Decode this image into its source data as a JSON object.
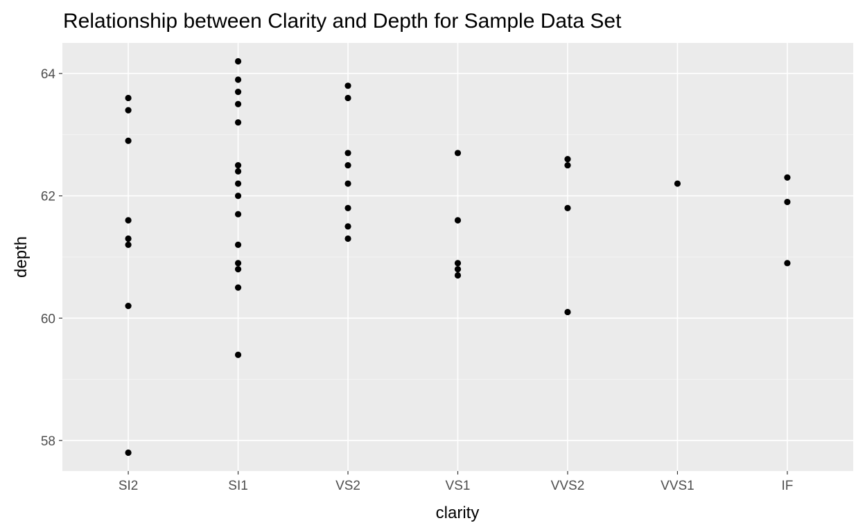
{
  "chart_data": {
    "type": "scatter",
    "title": "Relationship between Clarity and Depth for Sample Data Set",
    "xlabel": "clarity",
    "ylabel": "depth",
    "categories": [
      "SI2",
      "SI1",
      "VS2",
      "VS1",
      "VVS2",
      "VVS1",
      "IF"
    ],
    "ylim": [
      57.5,
      64.5
    ],
    "yticks": [
      58,
      60,
      62,
      64
    ],
    "grid": true,
    "colors": {
      "panel_background": "#ebebeb",
      "grid_major": "#ffffff",
      "grid_minor": "#f5f5f5",
      "point": "#000000",
      "tick_mark": "#333333"
    },
    "points": [
      {
        "x": "SI2",
        "y": 63.6
      },
      {
        "x": "SI2",
        "y": 63.4
      },
      {
        "x": "SI2",
        "y": 62.9
      },
      {
        "x": "SI2",
        "y": 61.6
      },
      {
        "x": "SI2",
        "y": 61.3
      },
      {
        "x": "SI2",
        "y": 61.2
      },
      {
        "x": "SI2",
        "y": 60.2
      },
      {
        "x": "SI2",
        "y": 57.8
      },
      {
        "x": "SI1",
        "y": 64.2
      },
      {
        "x": "SI1",
        "y": 63.9
      },
      {
        "x": "SI1",
        "y": 63.7
      },
      {
        "x": "SI1",
        "y": 63.5
      },
      {
        "x": "SI1",
        "y": 63.2
      },
      {
        "x": "SI1",
        "y": 62.5
      },
      {
        "x": "SI1",
        "y": 62.4
      },
      {
        "x": "SI1",
        "y": 62.2
      },
      {
        "x": "SI1",
        "y": 62.0
      },
      {
        "x": "SI1",
        "y": 61.7
      },
      {
        "x": "SI1",
        "y": 61.2
      },
      {
        "x": "SI1",
        "y": 60.9
      },
      {
        "x": "SI1",
        "y": 60.8
      },
      {
        "x": "SI1",
        "y": 60.5
      },
      {
        "x": "SI1",
        "y": 59.4
      },
      {
        "x": "VS2",
        "y": 63.8
      },
      {
        "x": "VS2",
        "y": 63.6
      },
      {
        "x": "VS2",
        "y": 62.7
      },
      {
        "x": "VS2",
        "y": 62.5
      },
      {
        "x": "VS2",
        "y": 62.2
      },
      {
        "x": "VS2",
        "y": 61.8
      },
      {
        "x": "VS2",
        "y": 61.5
      },
      {
        "x": "VS2",
        "y": 61.3
      },
      {
        "x": "VS1",
        "y": 62.7
      },
      {
        "x": "VS1",
        "y": 61.6
      },
      {
        "x": "VS1",
        "y": 60.9
      },
      {
        "x": "VS1",
        "y": 60.8
      },
      {
        "x": "VS1",
        "y": 60.7
      },
      {
        "x": "VVS2",
        "y": 62.6
      },
      {
        "x": "VVS2",
        "y": 62.5
      },
      {
        "x": "VVS2",
        "y": 61.8
      },
      {
        "x": "VVS2",
        "y": 60.1
      },
      {
        "x": "VVS1",
        "y": 62.2
      },
      {
        "x": "IF",
        "y": 62.3
      },
      {
        "x": "IF",
        "y": 61.9
      },
      {
        "x": "IF",
        "y": 60.9
      }
    ]
  }
}
